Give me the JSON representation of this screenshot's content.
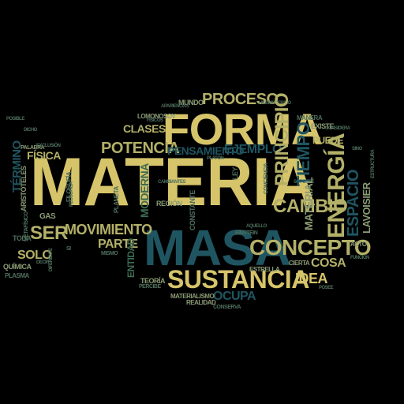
{
  "colors": {
    "background": "#000000",
    "gold": "#d6c46a",
    "olive": "#b3b068",
    "teal": "#1f5561",
    "green": "#3d6b52",
    "sage": "#8a9b74"
  },
  "words": {
    "materia": "MATERIA",
    "masa": "MASA",
    "forma": "FORMA",
    "sustancia": "SUSTANCIA",
    "concepto": "CONCEPTO",
    "energia": "ENERGÍA",
    "principio": "PRINCIPIO",
    "espacio": "ESPACIO",
    "tiempo": "TIEMPO",
    "proceso": "PROCESO",
    "cambio": "CAMBIO",
    "movimiento": "MOVIMIENTO",
    "potencia": "POTENCIA",
    "pensamiento": "PENSAMIENTO",
    "ejemplo": "EJEMPLO",
    "ser": "SER",
    "solo": "SOLO",
    "parte": "PARTE",
    "cosa": "COSA",
    "idea": "IDEA",
    "ocupa": "OCUPA",
    "fisica": "FÍSICA",
    "termino": "TÉRMINO",
    "clases": "CLASES",
    "material": "MATERIAL",
    "lavoisier": "LAVOISIER",
    "moderna": "MODERNA",
    "entidad": "ENTIDAD",
    "mundo": "MUNDO",
    "aristoteles": "ARISTÓTELES",
    "filosofia": "FILOSOFÍA",
    "gas": "GAS",
    "toda": "TODA",
    "quimica": "QUÍMICA",
    "planeta": "PLANETA",
    "region": "REGIÓN",
    "constante": "CONSTANTE",
    "ley": "LEY",
    "puede": "PUEDE",
    "existe": "EXISTE",
    "manera": "MANERA",
    "conserva": "CONSERVA",
    "realidad": "REALIDAD",
    "estrella": "ESTRELLA",
    "cierta": "CIERTA",
    "acto": "ACTO",
    "lomonosov": "LOMONOSOV",
    "einstein": "EINSTEIN",
    "palabra": "PALABRA",
    "posee": "POSEE",
    "mismo": "MISMO",
    "teoria": "TEORÍA",
    "materialismo": "MATERIALISMO",
    "aquello": "AQUELLO",
    "conciencia": "CONCIENCIA",
    "fisicos": "FÍSICOS",
    "platon": "PLATÓN",
    "posible": "POSIBLE",
    "exclusion": "EXCLUSIÓN",
    "filosofica": "FILOSÓFICA",
    "hilemorfismo": "HILEMORFISMO",
    "diferente": "DIFERENTE",
    "cambiantes": "CAMBIANTES",
    "percibe": "PERCIBE",
    "soporte": "SOPORTE",
    "funcion": "FUNCIÓN",
    "sino": "SINO",
    "dicho": "DICHO",
    "decir": "DECIR",
    "si": "SI",
    "plasma": "PLASMA",
    "metafisico": "METAFÍSICO",
    "apariencias": "APARIENCIAS",
    "considera": "CONSIDERA",
    "estructura": "ESTRUCTURA"
  }
}
